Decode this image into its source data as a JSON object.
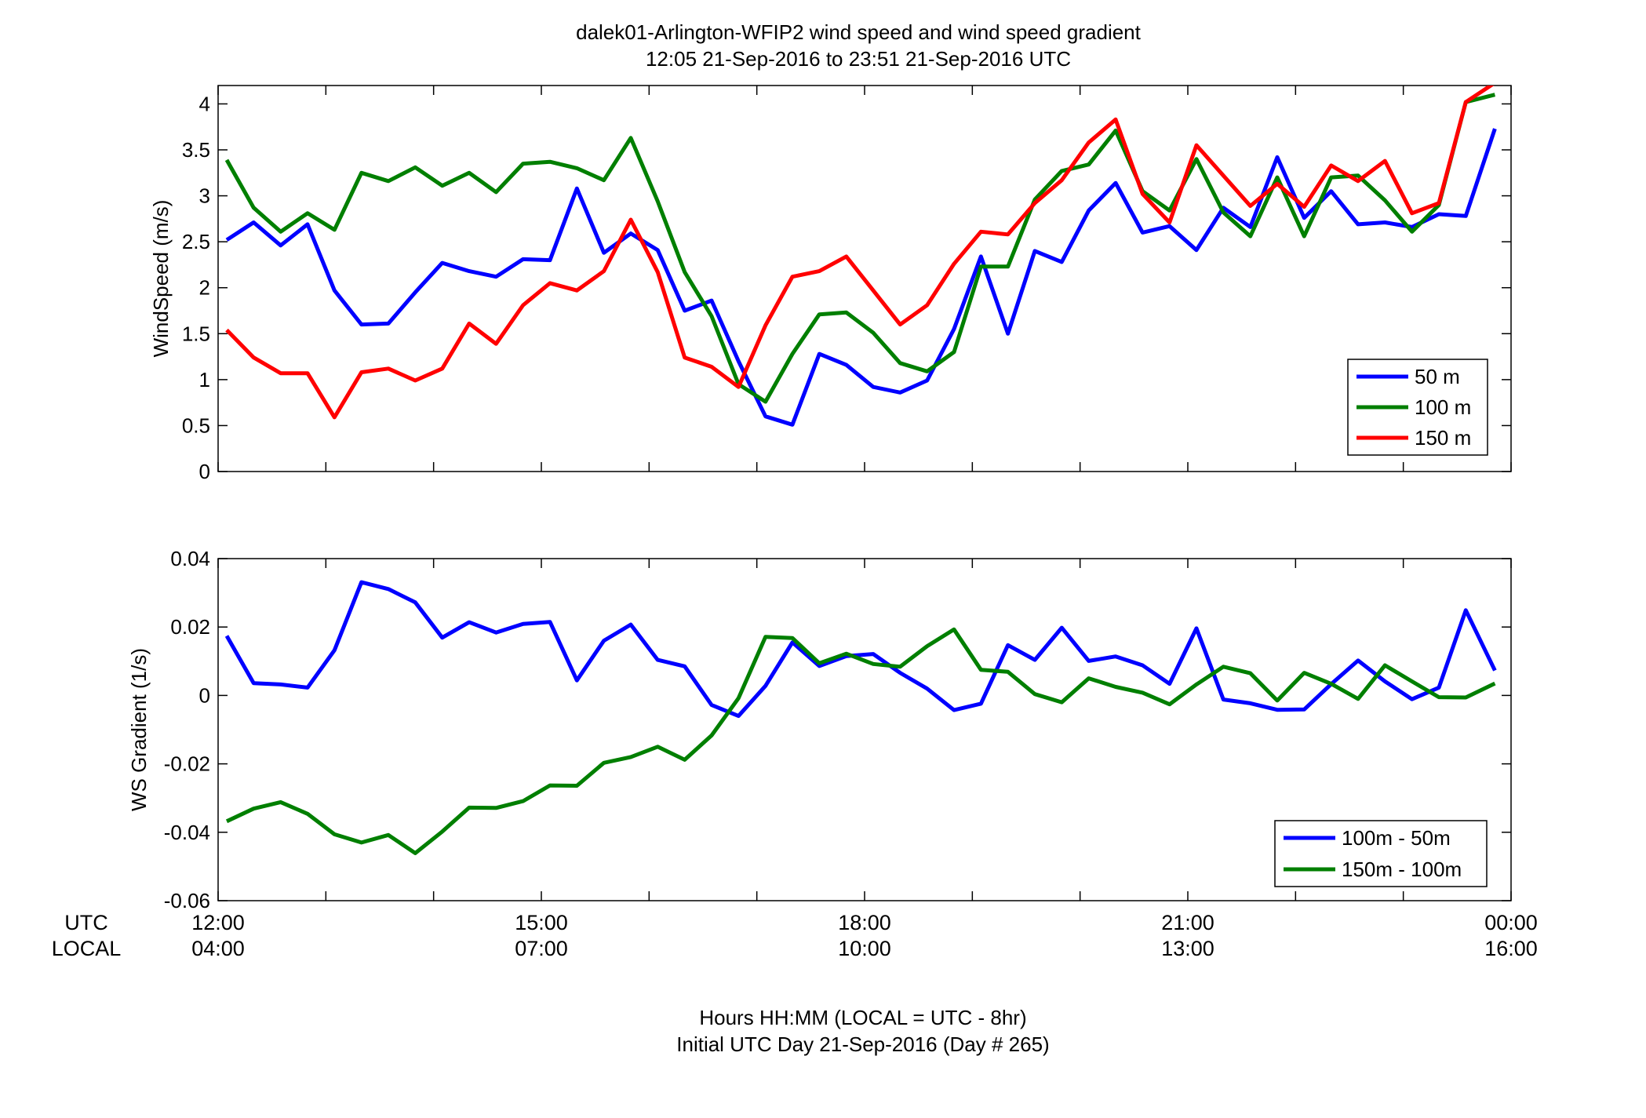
{
  "figure": {
    "title_line1": "dalek01-Arlington-WFIP2  wind speed and wind speed gradient",
    "title_line2": "12:05 21-Sep-2016 to 23:51 21-Sep-2016  UTC",
    "xlabel_line1": "Hours HH:MM  (LOCAL = UTC - 8hr)",
    "xlabel_line2": "Initial UTC Day 21-Sep-2016 (Day # 265)",
    "utc_label": "UTC",
    "local_label": "LOCAL",
    "x_ticks_utc": [
      "12:00",
      "15:00",
      "18:00",
      "21:00",
      "00:00"
    ],
    "x_ticks_local": [
      "04:00",
      "07:00",
      "10:00",
      "13:00",
      "16:00"
    ]
  },
  "chart_data": [
    {
      "type": "line",
      "ylabel": "WindSpeed (m/s)",
      "xlim": [
        12.0,
        24.0
      ],
      "ylim": [
        0,
        4.2
      ],
      "y_ticks": [
        "0",
        "0.5",
        "1",
        "1.5",
        "2",
        "2.5",
        "3",
        "3.5",
        "4"
      ],
      "y_tick_values": [
        0,
        0.5,
        1,
        1.5,
        2,
        2.5,
        3,
        3.5,
        4
      ],
      "legend_position": "bottom-right",
      "x": [
        12.08,
        12.33,
        12.58,
        12.83,
        13.08,
        13.33,
        13.58,
        13.83,
        14.08,
        14.33,
        14.58,
        14.83,
        15.08,
        15.33,
        15.58,
        15.83,
        16.08,
        16.33,
        16.58,
        16.83,
        17.08,
        17.33,
        17.58,
        17.83,
        18.08,
        18.33,
        18.58,
        18.83,
        19.08,
        19.33,
        19.58,
        19.83,
        20.08,
        20.33,
        20.58,
        20.83,
        21.08,
        21.33,
        21.58,
        21.83,
        22.08,
        22.33,
        22.58,
        22.83,
        23.08,
        23.33,
        23.58,
        23.85
      ],
      "series": [
        {
          "name": "50 m",
          "color": "#0000ff",
          "values": [
            2.52,
            2.71,
            2.46,
            2.69,
            1.97,
            1.6,
            1.61,
            1.95,
            2.27,
            2.18,
            2.12,
            2.31,
            2.3,
            3.08,
            2.38,
            2.59,
            2.41,
            1.75,
            1.86,
            1.2,
            0.6,
            0.51,
            1.28,
            1.16,
            0.92,
            0.86,
            0.99,
            1.55,
            2.34,
            1.5,
            2.4,
            2.28,
            2.84,
            3.14,
            2.6,
            2.67,
            2.41,
            2.87,
            2.66,
            3.42,
            2.76,
            3.05,
            2.69,
            2.71,
            2.66,
            2.8,
            2.78,
            3.73
          ]
        },
        {
          "name": "100 m",
          "color": "#007f00",
          "values": [
            3.39,
            2.87,
            2.61,
            2.81,
            2.63,
            3.25,
            3.16,
            3.31,
            3.11,
            3.25,
            3.04,
            3.35,
            3.37,
            3.3,
            3.17,
            3.63,
            2.94,
            2.17,
            1.69,
            0.95,
            0.76,
            1.28,
            1.71,
            1.73,
            1.51,
            1.18,
            1.09,
            1.3,
            2.23,
            2.23,
            2.96,
            3.27,
            3.34,
            3.71,
            3.05,
            2.84,
            3.4,
            2.82,
            2.56,
            3.2,
            2.56,
            3.2,
            3.22,
            2.95,
            2.61,
            2.9,
            4.02,
            4.1
          ]
        },
        {
          "name": "150 m",
          "color": "#ff0000",
          "values": [
            1.54,
            1.24,
            1.07,
            1.07,
            0.59,
            1.08,
            1.12,
            0.99,
            1.12,
            1.61,
            1.39,
            1.81,
            2.05,
            1.97,
            2.18,
            2.74,
            2.17,
            1.24,
            1.14,
            0.92,
            1.59,
            2.12,
            2.18,
            2.34,
            1.97,
            1.6,
            1.81,
            2.26,
            2.61,
            2.58,
            2.92,
            3.17,
            3.58,
            3.83,
            3.02,
            2.71,
            3.55,
            3.22,
            2.89,
            3.13,
            2.88,
            3.33,
            3.16,
            3.38,
            2.81,
            2.92,
            4.02,
            4.23
          ]
        }
      ]
    },
    {
      "type": "line",
      "ylabel": "WS Gradient (1/s)",
      "xlim": [
        12.0,
        24.0
      ],
      "ylim": [
        -0.06,
        0.04
      ],
      "y_ticks": [
        "-0.06",
        "-0.04",
        "-0.02",
        "0",
        "0.02",
        "0.04"
      ],
      "y_tick_values": [
        -0.06,
        -0.04,
        -0.02,
        0,
        0.02,
        0.04
      ],
      "legend_position": "bottom-right",
      "x": [
        12.08,
        12.33,
        12.58,
        12.83,
        13.08,
        13.33,
        13.58,
        13.83,
        14.08,
        14.33,
        14.58,
        14.83,
        15.08,
        15.33,
        15.58,
        15.83,
        16.08,
        16.33,
        16.58,
        16.83,
        17.08,
        17.33,
        17.58,
        17.83,
        18.08,
        18.33,
        18.58,
        18.83,
        19.08,
        19.33,
        19.58,
        19.83,
        20.08,
        20.33,
        20.58,
        20.83,
        21.08,
        21.33,
        21.58,
        21.83,
        22.08,
        22.33,
        22.58,
        22.83,
        23.08,
        23.33,
        23.58,
        23.85
      ],
      "series": [
        {
          "name": "100m - 50m",
          "color": "#0000ff",
          "values": [
            0.0174,
            0.0036,
            0.0032,
            0.0023,
            0.0132,
            0.0331,
            0.0311,
            0.0272,
            0.0169,
            0.0214,
            0.0184,
            0.0209,
            0.0215,
            0.0044,
            0.016,
            0.0207,
            0.0104,
            0.0085,
            -0.0028,
            -0.006,
            0.0028,
            0.0155,
            0.0086,
            0.0115,
            0.0121,
            0.0066,
            0.002,
            -0.0043,
            -0.0024,
            0.0147,
            0.0104,
            0.0198,
            0.0101,
            0.0114,
            0.0088,
            0.0034,
            0.0196,
            -0.0012,
            -0.0023,
            -0.0042,
            -0.0041,
            0.0033,
            0.0102,
            0.0041,
            -0.0011,
            0.0023,
            0.0249,
            0.0073
          ]
        },
        {
          "name": "150m - 100m",
          "color": "#007f00",
          "values": [
            -0.0368,
            -0.0331,
            -0.0312,
            -0.0346,
            -0.0406,
            -0.043,
            -0.0408,
            -0.0461,
            -0.0398,
            -0.0328,
            -0.0329,
            -0.0309,
            -0.0263,
            -0.0264,
            -0.0197,
            -0.018,
            -0.015,
            -0.0188,
            -0.0117,
            -0.0008,
            0.0171,
            0.0168,
            0.0094,
            0.0122,
            0.0092,
            0.0084,
            0.0144,
            0.0193,
            0.0075,
            0.0069,
            0.0004,
            -0.002,
            0.005,
            0.0025,
            0.0008,
            -0.0026,
            0.0032,
            0.0084,
            0.0065,
            -0.0015,
            0.0066,
            0.0034,
            -0.001,
            0.0088,
            0.0041,
            -0.0005,
            -0.0006,
            0.0035
          ]
        }
      ]
    }
  ]
}
